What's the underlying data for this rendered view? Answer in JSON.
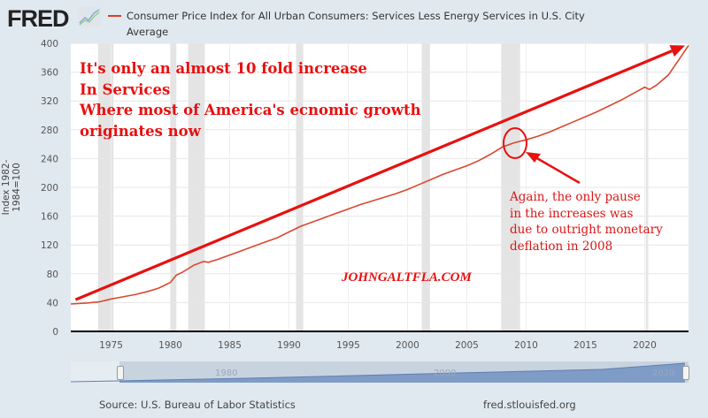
{
  "header": {
    "logo_text": "FRED",
    "logo_icon": "fred-chart-icon",
    "series_title": "Consumer Price Index for All Urban Consumers: Services Less Energy Services in U.S. City Average",
    "series_color": "#e03a2a"
  },
  "annotations": {
    "main_text": "It's only an almost 10 fold increase\nIn Services\nWhere most of America's ecnomic growth\noriginates now",
    "pause_text": "Again, the only pause\nin the increases was\ndue to outright monetary\ndeflation in 2008",
    "watermark": "JOHNGALTFLA.COM",
    "annotation_color": "#e81010"
  },
  "navigator": {
    "labels": [
      "1980",
      "2000",
      "2020"
    ]
  },
  "footer": {
    "source": "Source: U.S. Bureau of Labor Statistics",
    "site": "fred.stlouisfed.org"
  },
  "chart_data": {
    "type": "line",
    "title": "Consumer Price Index for All Urban Consumers: Services Less Energy Services in U.S. City Average",
    "xlabel": "",
    "ylabel": "Index 1982-1984=100",
    "xlim": [
      1971.6,
      2023.7
    ],
    "ylim": [
      0,
      400
    ],
    "yticks": [
      0,
      40,
      80,
      120,
      160,
      200,
      240,
      280,
      320,
      360,
      400
    ],
    "xticks": [
      1975,
      1980,
      1985,
      1990,
      1995,
      2000,
      2005,
      2010,
      2015,
      2020
    ],
    "grid": true,
    "legend": "top-left",
    "series": [
      {
        "name": "Consumer Price Index for All Urban Consumers: Services Less Energy Services in U.S. City Average",
        "x": [
          1971.6,
          1973,
          1974,
          1975,
          1976,
          1977,
          1978,
          1979,
          1980,
          1980.5,
          1981,
          1982,
          1982.8,
          1983.2,
          1984,
          1985,
          1986,
          1987,
          1988,
          1989,
          1990,
          1991,
          1992,
          1993,
          1994,
          1995,
          1996,
          1997,
          1998,
          1999,
          2000,
          2001,
          2002,
          2003,
          2004,
          2005,
          2006,
          2007,
          2008,
          2009,
          2010,
          2011,
          2012,
          2013,
          2014,
          2015,
          2016,
          2017,
          2018,
          2019,
          2020,
          2020.4,
          2021,
          2022,
          2023,
          2023.7
        ],
        "values": [
          38,
          39.5,
          41,
          45,
          48,
          51,
          55,
          60,
          68,
          78,
          82,
          92,
          97,
          96,
          100,
          106,
          112,
          118,
          124,
          130,
          138,
          146,
          152,
          158,
          164,
          170,
          176,
          181,
          186,
          191,
          197,
          204,
          211,
          218,
          224,
          230,
          237,
          246,
          256,
          262,
          266,
          271,
          277,
          284,
          291,
          298,
          305,
          313,
          321,
          330,
          339,
          336,
          342,
          356,
          380,
          397
        ]
      },
      {
        "name": "Trend arrow (annotation)",
        "x": [
          1972,
          2023.4
        ],
        "values": [
          44,
          397
        ]
      }
    ],
    "recessions": [
      [
        1973.9,
        1975.2
      ],
      [
        1980.0,
        1980.5
      ],
      [
        1981.5,
        1982.9
      ],
      [
        1990.6,
        1991.2
      ],
      [
        2001.2,
        2001.9
      ],
      [
        2007.9,
        2009.5
      ],
      [
        2020.1,
        2020.3
      ]
    ]
  }
}
